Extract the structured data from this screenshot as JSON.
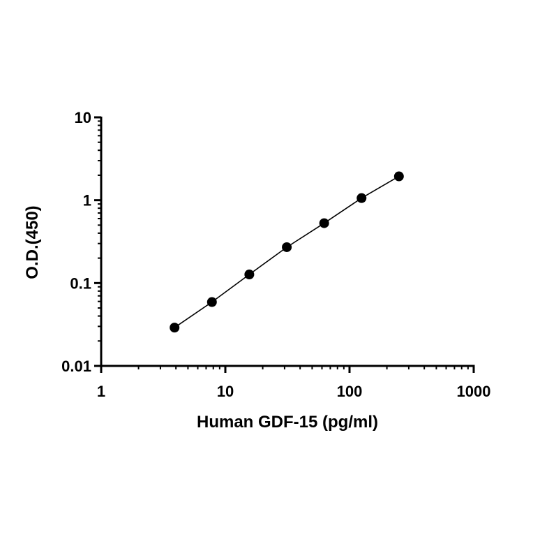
{
  "chart_data": {
    "type": "scatter",
    "title": "",
    "xlabel": "Human GDF-15 (pg/ml)",
    "ylabel": "O.D.(450)",
    "x_scale": "log",
    "y_scale": "log",
    "xlim": [
      1,
      1000
    ],
    "ylim": [
      0.01,
      10
    ],
    "x_ticks": [
      1,
      10,
      100,
      1000
    ],
    "x_tick_labels": [
      "1",
      "10",
      "100",
      "1000"
    ],
    "y_ticks": [
      0.01,
      0.1,
      1,
      10
    ],
    "y_tick_labels": [
      "0.01",
      "0.1",
      "1",
      "10"
    ],
    "grid": false,
    "legend": "none",
    "marker_color": "#000000",
    "line_color": "#000000",
    "series": [
      {
        "x": [
          3.9,
          7.8,
          15.6,
          31.25,
          62.5,
          125,
          250
        ],
        "y": [
          0.029,
          0.059,
          0.127,
          0.271,
          0.528,
          1.06,
          1.94
        ],
        "fit_line": true
      }
    ]
  }
}
